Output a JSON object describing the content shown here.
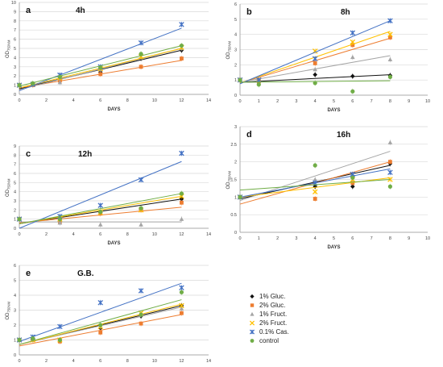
{
  "chart_data": [
    {
      "type": "scatter",
      "title": "4h",
      "panel_label": "a",
      "xlabel": "DAYS",
      "ylabel": "OD750nm",
      "xlim": [
        0,
        14
      ],
      "ylim": [
        0,
        10
      ],
      "xticks": [
        0,
        2,
        4,
        6,
        8,
        10,
        12,
        14
      ],
      "yticks": [
        0,
        1,
        2,
        3,
        4,
        5,
        6,
        7,
        8,
        9,
        10
      ],
      "grid": true,
      "series": [
        {
          "name": "1% Gluc.",
          "x": [
            0,
            1,
            3,
            6,
            9,
            12
          ],
          "y": [
            1.0,
            1.1,
            1.6,
            2.4,
            3.9,
            4.8
          ],
          "trend": [
            0.6,
            4.8
          ]
        },
        {
          "name": "2% Gluc.",
          "x": [
            0,
            1,
            3,
            6,
            9,
            12
          ],
          "y": [
            1.0,
            1.0,
            1.5,
            2.2,
            3.0,
            3.9
          ],
          "trend": [
            0.7,
            3.7
          ]
        },
        {
          "name": "1% Fruct.",
          "x": [
            0,
            1,
            3,
            6,
            9,
            12
          ],
          "y": [
            1.0,
            1.1,
            1.3,
            2.7,
            4.0,
            5.0
          ],
          "trend": [
            0.5,
            5.0
          ]
        },
        {
          "name": "2% Fruct.",
          "x": [
            0,
            1,
            3,
            6,
            9,
            12
          ],
          "y": [
            1.0,
            1.1,
            1.8,
            2.8,
            4.1,
            5.1
          ],
          "trend": [
            0.7,
            5.0
          ]
        },
        {
          "name": "0.1% Cas.",
          "x": [
            0,
            1,
            3,
            6,
            9,
            12
          ],
          "y": [
            1.0,
            1.1,
            2.1,
            3.0,
            5.6,
            7.6
          ],
          "trend": [
            0.4,
            7.2
          ]
        },
        {
          "name": "control",
          "x": [
            0,
            1,
            3,
            6,
            9,
            12
          ],
          "y": [
            1.0,
            1.2,
            1.9,
            2.9,
            4.4,
            5.3
          ],
          "trend": [
            0.9,
            5.3
          ]
        }
      ]
    },
    {
      "type": "scatter",
      "title": "8h",
      "panel_label": "b",
      "xlabel": "DAYS",
      "ylabel": "OD750nm",
      "xlim": [
        0,
        10
      ],
      "ylim": [
        0,
        6
      ],
      "xticks": [
        0,
        1,
        2,
        3,
        4,
        5,
        6,
        7,
        8,
        9,
        10
      ],
      "yticks": [
        0,
        1,
        2,
        3,
        4,
        5,
        6
      ],
      "grid": true,
      "series": [
        {
          "name": "1% Gluc.",
          "x": [
            0,
            1,
            4,
            6,
            8
          ],
          "y": [
            1.0,
            1.0,
            1.35,
            1.25,
            1.3
          ],
          "trend": [
            0.85,
            1.35
          ]
        },
        {
          "name": "2% Gluc.",
          "x": [
            0,
            1,
            4,
            6,
            8
          ],
          "y": [
            1.0,
            0.9,
            2.1,
            3.3,
            3.8
          ],
          "trend": [
            0.8,
            3.75
          ]
        },
        {
          "name": "1% Fruct.",
          "x": [
            0,
            1,
            4,
            6,
            8
          ],
          "y": [
            1.0,
            1.0,
            1.7,
            2.5,
            2.35
          ],
          "trend": [
            0.85,
            2.6
          ]
        },
        {
          "name": "2% Fruct.",
          "x": [
            0,
            1,
            4,
            6,
            8
          ],
          "y": [
            1.0,
            1.0,
            2.9,
            3.5,
            4.0
          ],
          "trend": [
            0.8,
            4.2
          ]
        },
        {
          "name": "0.1% Cas.",
          "x": [
            0,
            1,
            4,
            6,
            8
          ],
          "y": [
            1.0,
            1.0,
            2.4,
            4.1,
            4.9
          ],
          "trend": [
            0.75,
            4.9
          ]
        },
        {
          "name": "control",
          "x": [
            0,
            1,
            4,
            6,
            8
          ],
          "y": [
            1.0,
            0.7,
            0.8,
            0.25,
            1.2
          ],
          "trend": [
            0.85,
            0.95
          ]
        }
      ]
    },
    {
      "type": "scatter",
      "title": "12h",
      "panel_label": "c",
      "xlabel": "DAYS",
      "ylabel": "OD750nm",
      "xlim": [
        0,
        14
      ],
      "ylim": [
        0,
        9
      ],
      "xticks": [
        0,
        2,
        4,
        6,
        8,
        10,
        12,
        14
      ],
      "yticks": [
        0,
        1,
        2,
        3,
        4,
        5,
        6,
        7,
        8,
        9
      ],
      "grid": true,
      "series": [
        {
          "name": "1% Gluc.",
          "x": [
            0,
            3,
            6,
            9,
            12
          ],
          "y": [
            1.0,
            0.8,
            1.7,
            2.1,
            3.2
          ],
          "trend": [
            0.5,
            3.2
          ]
        },
        {
          "name": "2% Gluc.",
          "x": [
            0,
            3,
            6,
            9,
            12
          ],
          "y": [
            1.0,
            0.7,
            1.6,
            2.0,
            2.8
          ],
          "trend": [
            0.6,
            2.3
          ]
        },
        {
          "name": "1% Fruct.",
          "x": [
            0,
            3,
            6,
            9,
            12
          ],
          "y": [
            1.0,
            0.6,
            0.4,
            0.4,
            1.0
          ],
          "trend": [
            0.7,
            0.7
          ]
        },
        {
          "name": "2% Fruct.",
          "x": [
            0,
            3,
            6,
            9,
            12
          ],
          "y": [
            1.0,
            1.0,
            1.7,
            2.0,
            3.5
          ],
          "trend": [
            0.5,
            3.5
          ]
        },
        {
          "name": "0.1% Cas.",
          "x": [
            0,
            3,
            6,
            9,
            12
          ],
          "y": [
            1.0,
            1.3,
            2.5,
            5.3,
            8.2
          ],
          "trend": [
            0.0,
            7.3
          ]
        },
        {
          "name": "control",
          "x": [
            0,
            3,
            6,
            9,
            12
          ],
          "y": [
            1.0,
            1.0,
            1.8,
            2.2,
            3.8
          ],
          "trend": [
            0.5,
            3.8
          ]
        }
      ]
    },
    {
      "type": "scatter",
      "title": "16h",
      "panel_label": "d",
      "xlabel": "DAYS",
      "ylabel": "OD750nm",
      "xlim": [
        0,
        10
      ],
      "ylim": [
        0,
        3
      ],
      "xticks": [
        0,
        1,
        2,
        3,
        4,
        5,
        6,
        7,
        8,
        9,
        10
      ],
      "yticks": [
        0,
        0.5,
        1,
        1.5,
        2,
        2.5,
        3
      ],
      "grid": true,
      "series": [
        {
          "name": "1% Gluc.",
          "x": [
            0,
            4,
            6,
            8
          ],
          "y": [
            1.0,
            1.3,
            1.3,
            1.95
          ],
          "trend": [
            0.95,
            1.9
          ]
        },
        {
          "name": "2% Gluc.",
          "x": [
            0,
            4,
            6,
            8
          ],
          "y": [
            1.0,
            0.95,
            1.4,
            2.0
          ],
          "trend": [
            0.8,
            2.0
          ]
        },
        {
          "name": "1% Fruct.",
          "x": [
            0,
            4,
            6,
            8
          ],
          "y": [
            1.0,
            1.5,
            1.6,
            2.55
          ],
          "trend": [
            0.9,
            2.3
          ]
        },
        {
          "name": "2% Fruct.",
          "x": [
            0,
            4,
            6,
            8
          ],
          "y": [
            1.0,
            1.15,
            1.5,
            1.5
          ],
          "trend": [
            1.0,
            1.55
          ]
        },
        {
          "name": "0.1% Cas.",
          "x": [
            0,
            4,
            6,
            8
          ],
          "y": [
            1.0,
            1.4,
            1.65,
            1.7
          ],
          "trend": [
            1.0,
            1.8
          ]
        },
        {
          "name": "control",
          "x": [
            0,
            4,
            6,
            8
          ],
          "y": [
            1.0,
            1.9,
            1.55,
            1.3
          ],
          "trend": [
            1.2,
            1.5
          ]
        }
      ]
    },
    {
      "type": "scatter",
      "title": "G.B.",
      "panel_label": "e",
      "xlabel": "DAYS",
      "ylabel": "OD750nm",
      "xlim": [
        0,
        14
      ],
      "ylim": [
        0,
        6
      ],
      "xticks": [
        0,
        2,
        4,
        6,
        8,
        10,
        12,
        14
      ],
      "yticks": [
        0,
        1,
        2,
        3,
        4,
        5,
        6
      ],
      "grid": true,
      "series": [
        {
          "name": "1% Gluc.",
          "x": [
            0,
            1,
            3,
            6,
            9,
            12
          ],
          "y": [
            1.0,
            1.0,
            1.0,
            1.8,
            2.6,
            3.3
          ],
          "trend": [
            0.7,
            3.3
          ]
        },
        {
          "name": "2% Gluc.",
          "x": [
            0,
            1,
            3,
            6,
            9,
            12
          ],
          "y": [
            1.0,
            1.0,
            0.9,
            1.5,
            2.1,
            2.8
          ],
          "trend": [
            0.6,
            2.7
          ]
        },
        {
          "name": "1% Fruct.",
          "x": [
            0,
            1,
            3,
            6,
            9,
            12
          ],
          "y": [
            1.0,
            1.0,
            1.0,
            1.9,
            2.7,
            3.1
          ],
          "trend": [
            0.7,
            3.2
          ]
        },
        {
          "name": "2% Fruct.",
          "x": [
            0,
            1,
            3,
            6,
            9,
            12
          ],
          "y": [
            1.0,
            1.0,
            1.0,
            1.9,
            2.8,
            3.3
          ],
          "trend": [
            0.7,
            3.4
          ]
        },
        {
          "name": "0.1% Cas.",
          "x": [
            0,
            1,
            3,
            6,
            9,
            12
          ],
          "y": [
            1.0,
            1.2,
            1.9,
            3.5,
            4.3,
            4.5
          ],
          "trend": [
            0.9,
            4.8
          ]
        },
        {
          "name": "control",
          "x": [
            0,
            1,
            3,
            6,
            9,
            12
          ],
          "y": [
            1.0,
            1.1,
            1.0,
            2.0,
            2.7,
            4.2
          ],
          "trend": [
            0.7,
            3.7
          ]
        }
      ]
    }
  ],
  "legend": {
    "entries": [
      {
        "label": "1% Gluc.",
        "marker": "diamond",
        "color": "#111111"
      },
      {
        "label": "2% Gluc.",
        "marker": "square",
        "color": "#ed7d31"
      },
      {
        "label": "1% Fruct.",
        "marker": "triangle",
        "color": "#a5a5a5"
      },
      {
        "label": "2% Fruct.",
        "marker": "x",
        "color": "#ffc000"
      },
      {
        "label": "0.1% Cas.",
        "marker": "asterisk",
        "color": "#4472c4"
      },
      {
        "label": "control",
        "marker": "circle",
        "color": "#70ad47"
      }
    ]
  },
  "series_colors": {
    "1% Gluc.": "#111111",
    "2% Gluc.": "#ed7d31",
    "1% Fruct.": "#a5a5a5",
    "2% Fruct.": "#ffc000",
    "0.1% Cas.": "#4472c4",
    "control": "#70ad47"
  },
  "grid_color": "#d9d9d9",
  "axis_text_color": "#444444"
}
